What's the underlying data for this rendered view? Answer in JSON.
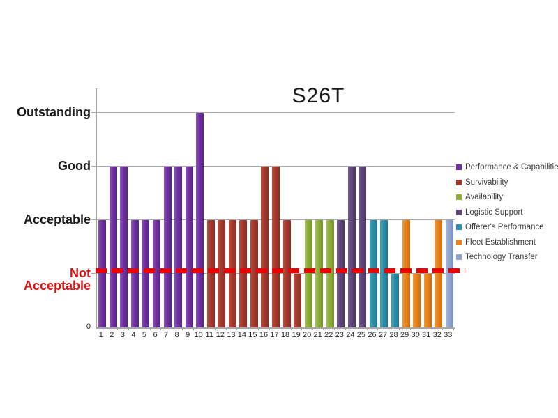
{
  "chart_data": {
    "type": "bar",
    "title": "S26T",
    "categories": [
      "1",
      "2",
      "3",
      "4",
      "5",
      "6",
      "7",
      "8",
      "9",
      "10",
      "11",
      "12",
      "13",
      "14",
      "15",
      "16",
      "17",
      "18",
      "19",
      "20",
      "21",
      "22",
      "23",
      "24",
      "25",
      "26",
      "27",
      "28",
      "29",
      "30",
      "31",
      "32",
      "33"
    ],
    "value_scale": {
      "0": "0",
      "1": "Not Acceptable",
      "2": "Acceptable",
      "3": "Good",
      "4": "Outstanding"
    },
    "series": [
      {
        "name": "Performance & Capabilities",
        "color": "#7030A0",
        "color_light": "#8A53BC",
        "color_dark": "#55257F",
        "values": [
          2,
          3,
          3,
          2,
          2,
          2,
          3,
          3,
          3,
          4
        ]
      },
      {
        "name": "Survivability",
        "color": "#A33A30",
        "color_light": "#BA4C3C",
        "color_dark": "#8A2F26",
        "values": [
          2,
          2,
          2,
          2,
          2,
          3,
          3,
          2,
          1
        ]
      },
      {
        "name": "Availability",
        "color": "#8CAC39",
        "color_light": "#A2C14E",
        "color_dark": "#75942C",
        "values": [
          2,
          2,
          2
        ]
      },
      {
        "name": "Logistic Support",
        "color": "#5C4677",
        "color_light": "#6F588F",
        "color_dark": "#4B3862",
        "values": [
          2,
          3,
          3
        ]
      },
      {
        "name": "Offerer's Performance",
        "color": "#2E8FA8",
        "color_light": "#3FA3BC",
        "color_dark": "#24748A",
        "values": [
          2,
          2,
          1
        ]
      },
      {
        "name": "Fleet Establishment",
        "color": "#E8821E",
        "color_light": "#F29636",
        "color_dark": "#CC6D0E",
        "values": [
          2,
          1,
          1,
          2
        ]
      },
      {
        "name": "Technology Transfer",
        "color": "#8FA5CE",
        "color_light": "#A6B8DC",
        "color_dark": "#7A91BE",
        "values": [
          2
        ]
      }
    ],
    "y_ticks": [
      {
        "value": 0,
        "label": "0",
        "color": "#1a1a1a"
      },
      {
        "value": 1,
        "label": "Not Acceptable",
        "color": "#DD1111"
      },
      {
        "value": 2,
        "label": "Acceptable",
        "color": "#1a1a1a"
      },
      {
        "value": 3,
        "label": "Good",
        "color": "#1a1a1a"
      },
      {
        "value": 4,
        "label": "Outstanding",
        "color": "#1a1a1a"
      }
    ],
    "ylim": [
      0,
      4.45
    ],
    "grid": "horizontal-gridlines-on",
    "legend_position": "right",
    "reference_line": {
      "value": 1,
      "style": "dashed",
      "color": "#EE0000",
      "meaning": "Not Acceptable threshold"
    }
  }
}
